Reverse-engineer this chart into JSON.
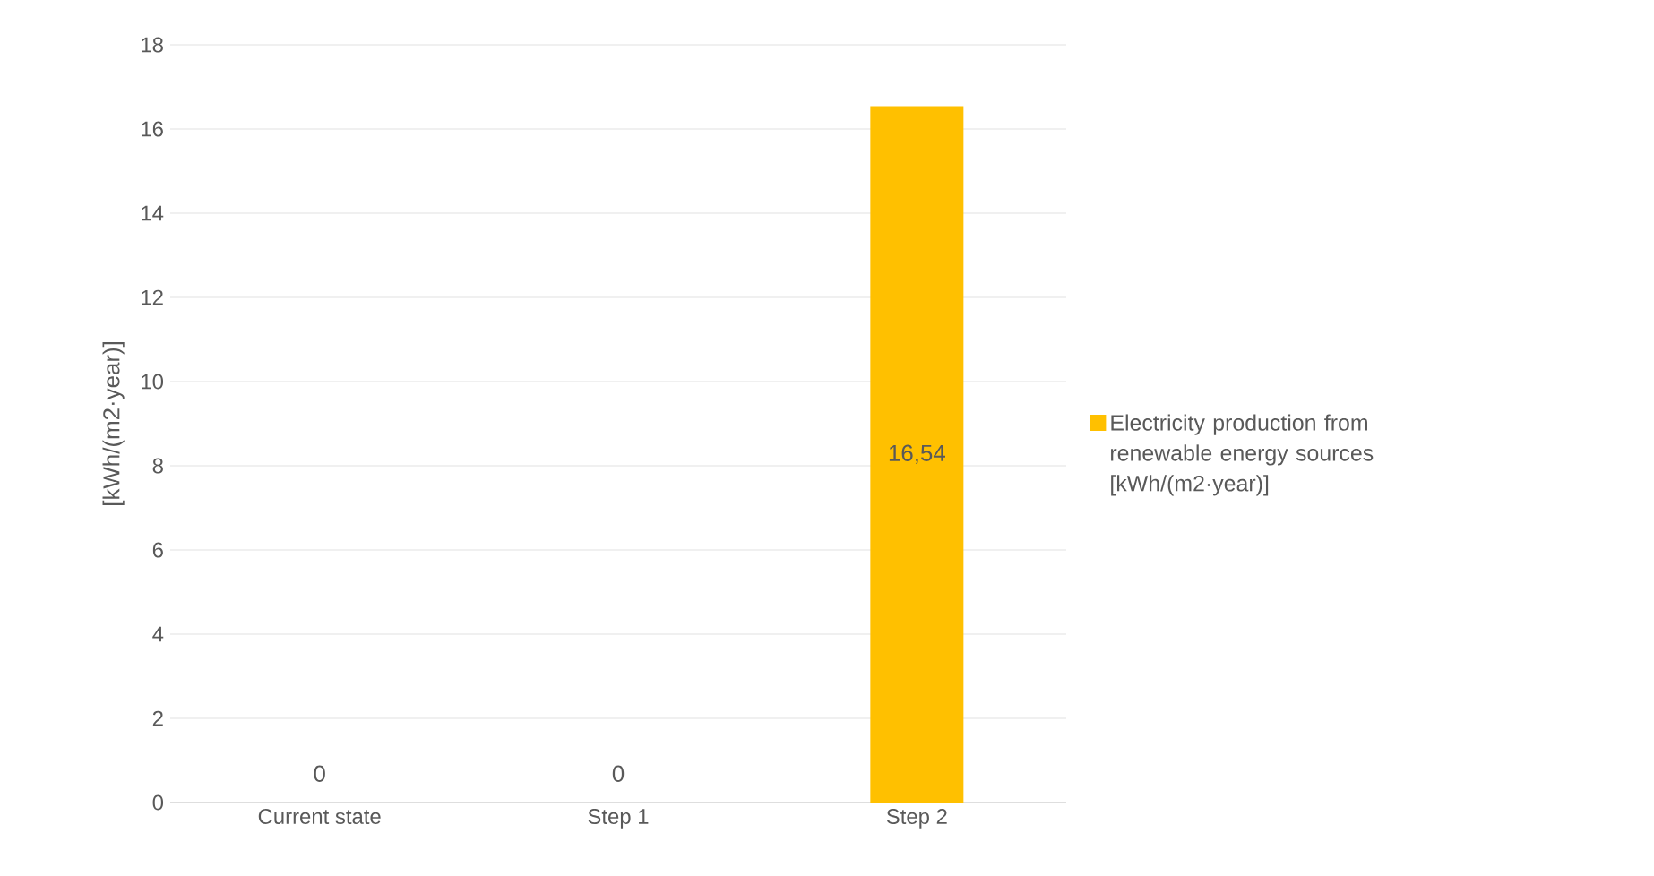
{
  "chart_data": {
    "type": "bar",
    "ylabel": "[kWh/(m2·year)]",
    "categories": [
      "Current state",
      "Step 1",
      "Step 2"
    ],
    "series": [
      {
        "name": "Electricity production from renewable energy sources [kWh/(m2·year)]",
        "color": "#ffc000",
        "values": [
          0,
          0,
          16.54
        ],
        "value_labels": [
          "0",
          "0",
          "16,54"
        ]
      }
    ],
    "ylim": [
      0,
      18
    ],
    "yticks": [
      0,
      2,
      4,
      6,
      8,
      10,
      12,
      14,
      16,
      18
    ],
    "grid": "y",
    "legend": "right"
  }
}
